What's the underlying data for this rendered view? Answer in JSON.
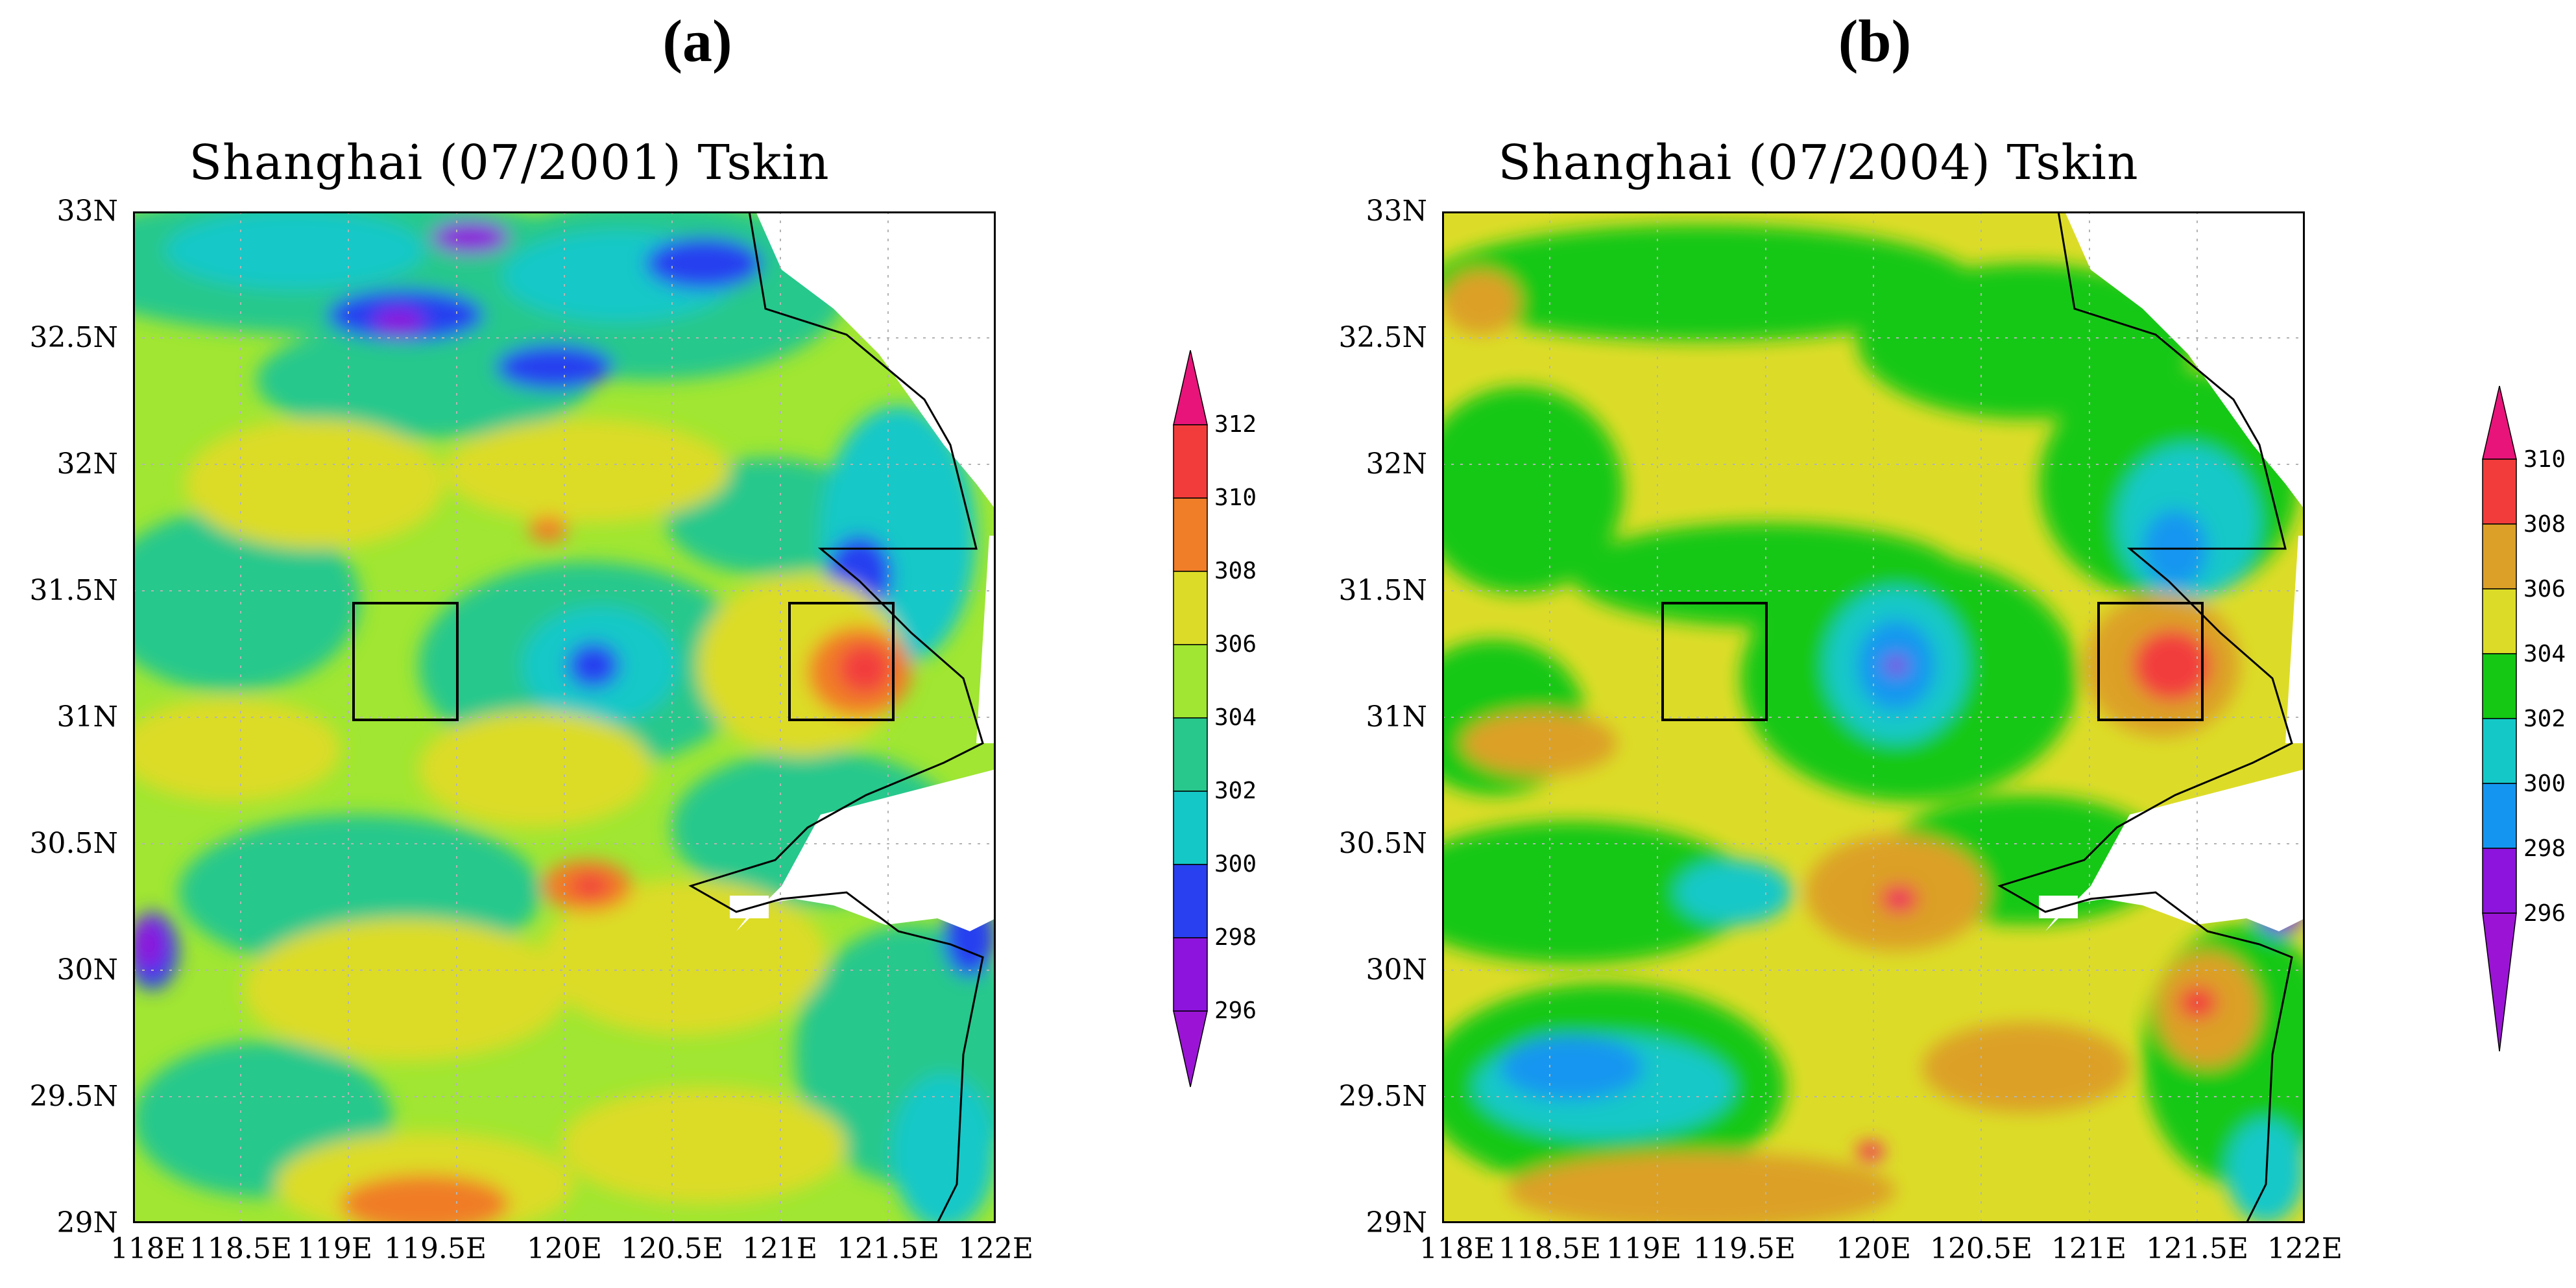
{
  "figure": {
    "panels": [
      {
        "letter": "(a)",
        "title": "Shanghai (07/2001) Tskin",
        "lat_labels": [
          "33N",
          "32.5N",
          "32N",
          "31.5N",
          "31N",
          "30.5N",
          "30N",
          "29.5N",
          "29N"
        ],
        "lon_labels": [
          "118E",
          "118.5E",
          "119E",
          "119.5E",
          "120E",
          "120.5E",
          "121E",
          "121.5E",
          "122E"
        ],
        "colorbar": {
          "levels": [
            "312",
            "310",
            "308",
            "306",
            "304",
            "302",
            "300",
            "298",
            "296"
          ],
          "colors": [
            "#e8147a",
            "#f23c3c",
            "#f07d28",
            "#dcdc28",
            "#a0e632",
            "#28c88c",
            "#14c8c8",
            "#2840f0",
            "#8c14dc",
            "#9b14d6"
          ]
        },
        "field_colors": {
          "base": "#a0e632",
          "warm": "#dcdc28",
          "hot": "#f07d28",
          "hotter": "#f23c3c",
          "cool": "#28c88c",
          "cooler": "#14c8c8",
          "cold": "#2840f0",
          "coldest": "#8c14dc"
        }
      },
      {
        "letter": "(b)",
        "title": "Shanghai (07/2004) Tskin",
        "lat_labels": [
          "33N",
          "32.5N",
          "32N",
          "31.5N",
          "31N",
          "30.5N",
          "30N",
          "29.5N",
          "29N"
        ],
        "lon_labels": [
          "118E",
          "118.5E",
          "119E",
          "119.5E",
          "120E",
          "120.5E",
          "121E",
          "121.5E",
          "122E"
        ],
        "colorbar": {
          "levels": [
            "310",
            "308",
            "306",
            "304",
            "302",
            "300",
            "298",
            "296"
          ],
          "colors": [
            "#e8147a",
            "#f23c3c",
            "#dca028",
            "#dcdc28",
            "#14c814",
            "#14c8c8",
            "#1496f0",
            "#8c14dc",
            "#9b14d6"
          ]
        },
        "field_colors": {
          "base": "#dcdc28",
          "warm": "#dca028",
          "hot": "#f23c3c",
          "hotter": "#e8147a",
          "cool": "#14c814",
          "cooler": "#14c8c8",
          "cold": "#1496f0",
          "coldest": "#8c14dc"
        }
      }
    ]
  }
}
